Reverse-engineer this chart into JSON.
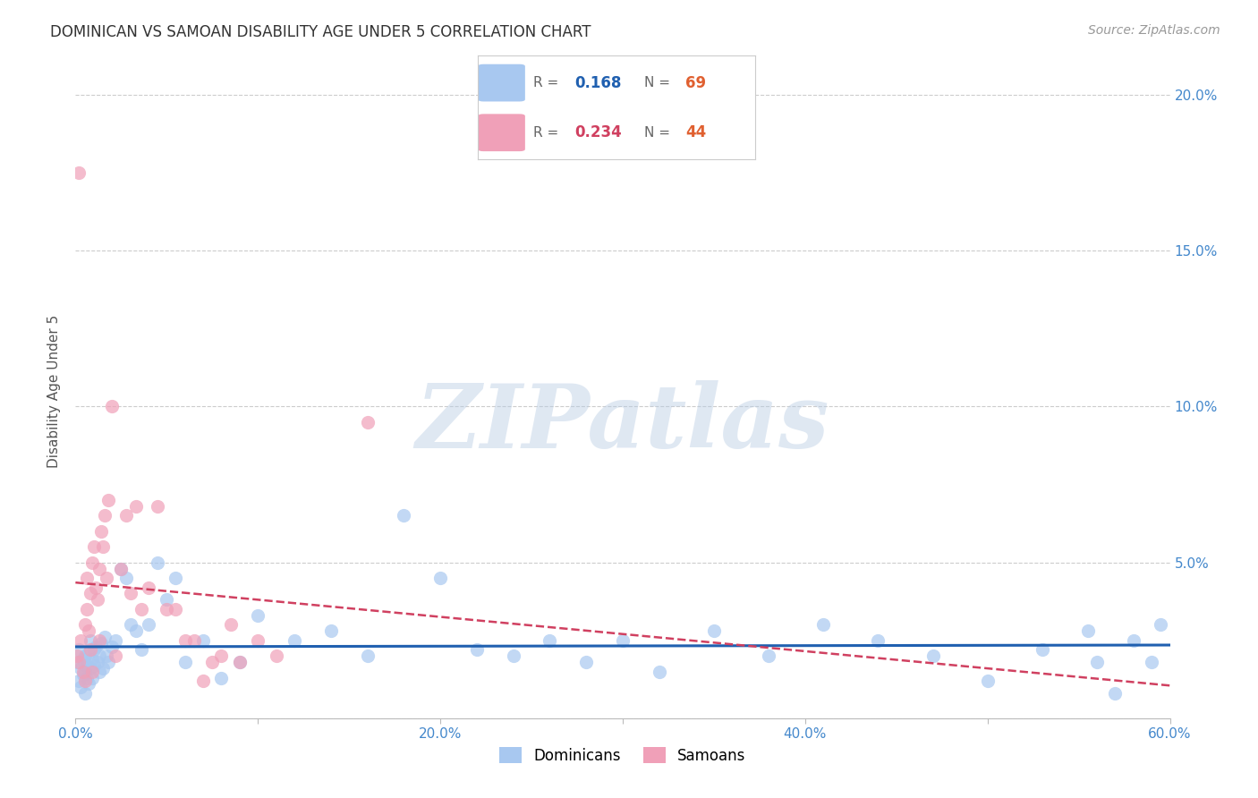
{
  "title": "DOMINICAN VS SAMOAN DISABILITY AGE UNDER 5 CORRELATION CHART",
  "source": "Source: ZipAtlas.com",
  "ylabel": "Disability Age Under 5",
  "watermark": "ZIPatlas",
  "xlim": [
    0.0,
    0.6
  ],
  "ylim": [
    0.0,
    0.21
  ],
  "xticks": [
    0.0,
    0.1,
    0.2,
    0.3,
    0.4,
    0.5,
    0.6
  ],
  "xtick_labels": [
    "0.0%",
    "",
    "20.0%",
    "",
    "40.0%",
    "",
    "60.0%"
  ],
  "yticks": [
    0.0,
    0.05,
    0.1,
    0.15,
    0.2
  ],
  "ytick_labels_right": [
    "",
    "5.0%",
    "10.0%",
    "15.0%",
    "20.0%"
  ],
  "dominicans_R": 0.168,
  "dominicans_N": 69,
  "samoans_R": 0.234,
  "samoans_N": 44,
  "dominican_color": "#a8c8f0",
  "samoan_color": "#f0a0b8",
  "dominican_line_color": "#2060b0",
  "samoan_line_color": "#d04060",
  "background_color": "#ffffff",
  "grid_color": "#cccccc",
  "axis_label_color": "#4488cc",
  "dominicans_x": [
    0.001,
    0.002,
    0.002,
    0.003,
    0.003,
    0.004,
    0.004,
    0.005,
    0.005,
    0.005,
    0.006,
    0.006,
    0.007,
    0.007,
    0.008,
    0.008,
    0.009,
    0.009,
    0.01,
    0.01,
    0.011,
    0.012,
    0.013,
    0.013,
    0.014,
    0.015,
    0.016,
    0.017,
    0.018,
    0.02,
    0.022,
    0.025,
    0.028,
    0.03,
    0.033,
    0.036,
    0.04,
    0.045,
    0.05,
    0.055,
    0.06,
    0.07,
    0.08,
    0.09,
    0.1,
    0.12,
    0.14,
    0.16,
    0.18,
    0.2,
    0.22,
    0.24,
    0.26,
    0.28,
    0.3,
    0.32,
    0.35,
    0.38,
    0.41,
    0.44,
    0.47,
    0.5,
    0.53,
    0.555,
    0.56,
    0.57,
    0.58,
    0.59,
    0.595
  ],
  "dominicans_y": [
    0.018,
    0.022,
    0.012,
    0.016,
    0.01,
    0.019,
    0.014,
    0.02,
    0.015,
    0.008,
    0.013,
    0.017,
    0.021,
    0.011,
    0.025,
    0.016,
    0.019,
    0.013,
    0.022,
    0.017,
    0.023,
    0.018,
    0.02,
    0.015,
    0.024,
    0.016,
    0.026,
    0.02,
    0.018,
    0.023,
    0.025,
    0.048,
    0.045,
    0.03,
    0.028,
    0.022,
    0.03,
    0.05,
    0.038,
    0.045,
    0.018,
    0.025,
    0.013,
    0.018,
    0.033,
    0.025,
    0.028,
    0.02,
    0.065,
    0.045,
    0.022,
    0.02,
    0.025,
    0.018,
    0.025,
    0.015,
    0.028,
    0.02,
    0.03,
    0.025,
    0.02,
    0.012,
    0.022,
    0.028,
    0.018,
    0.008,
    0.025,
    0.018,
    0.03
  ],
  "samoans_x": [
    0.001,
    0.002,
    0.003,
    0.004,
    0.005,
    0.005,
    0.006,
    0.006,
    0.007,
    0.008,
    0.008,
    0.009,
    0.009,
    0.01,
    0.011,
    0.012,
    0.013,
    0.013,
    0.014,
    0.015,
    0.016,
    0.017,
    0.018,
    0.02,
    0.022,
    0.025,
    0.028,
    0.03,
    0.033,
    0.036,
    0.04,
    0.045,
    0.05,
    0.055,
    0.06,
    0.065,
    0.07,
    0.075,
    0.08,
    0.085,
    0.09,
    0.1,
    0.11,
    0.16
  ],
  "samoans_y": [
    0.02,
    0.018,
    0.025,
    0.015,
    0.03,
    0.012,
    0.045,
    0.035,
    0.028,
    0.04,
    0.022,
    0.05,
    0.015,
    0.055,
    0.042,
    0.038,
    0.048,
    0.025,
    0.06,
    0.055,
    0.065,
    0.045,
    0.07,
    0.1,
    0.02,
    0.048,
    0.065,
    0.04,
    0.068,
    0.035,
    0.042,
    0.068,
    0.035,
    0.035,
    0.025,
    0.025,
    0.012,
    0.018,
    0.02,
    0.03,
    0.018,
    0.025,
    0.02,
    0.095
  ],
  "samoan_outlier_x": [
    0.002
  ],
  "samoan_outlier_y": [
    0.175
  ]
}
